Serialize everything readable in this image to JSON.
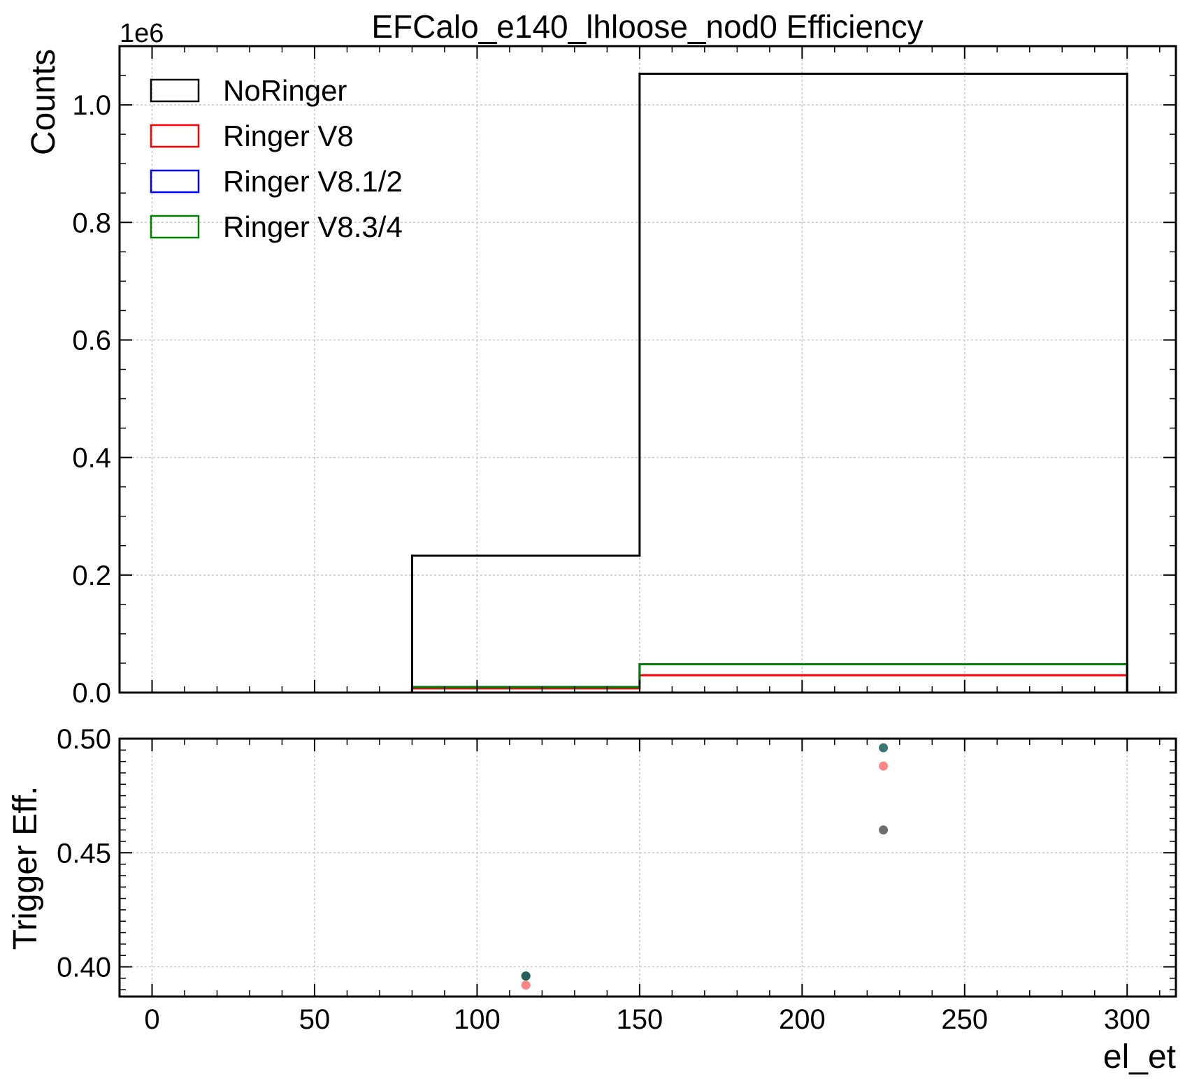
{
  "chart_data": [
    {
      "type": "histogram",
      "title": "EFCalo_e140_lhloose_nod0 Efficiency",
      "ylabel": "Counts",
      "y_multiplier": "1e6",
      "xlim": [
        -10,
        315
      ],
      "ylim": [
        0,
        1.1
      ],
      "grid": true,
      "legend_position": "top-left",
      "bin_edges": [
        80,
        150,
        300
      ],
      "series": [
        {
          "name": "NoRinger",
          "color": "#000000",
          "values": [
            0.233,
            1.053
          ]
        },
        {
          "name": "Ringer V8",
          "color": "#ff0000",
          "values": [
            0.0072,
            0.0295
          ]
        },
        {
          "name": "Ringer V8.1/2",
          "color": "#0000ff",
          "values": [
            0.0093,
            0.0482
          ]
        },
        {
          "name": "Ringer V8.3/4",
          "color": "#008000",
          "values": [
            0.0093,
            0.0482
          ]
        }
      ],
      "x_ticks": [
        0,
        50,
        100,
        150,
        200,
        250,
        300
      ],
      "y_ticks": [
        "0.0",
        "0.2",
        "0.4",
        "0.6",
        "0.8",
        "1.0"
      ]
    },
    {
      "type": "scatter",
      "xlabel": "el_et",
      "ylabel": "Trigger Eff.",
      "xlim": [
        -10,
        315
      ],
      "ylim": [
        0.387,
        0.5
      ],
      "grid": true,
      "series": [
        {
          "color": "#555555",
          "points": [
            [
              115,
              0.396
            ],
            [
              225,
              0.46
            ]
          ]
        },
        {
          "color": "#f87070",
          "points": [
            [
              115,
              0.392
            ],
            [
              225,
              0.488
            ]
          ]
        },
        {
          "color": "#1a5e5a",
          "points": [
            [
              115,
              0.396
            ],
            [
              225,
              0.496
            ]
          ]
        }
      ],
      "x_ticks": [
        "0",
        "50",
        "100",
        "150",
        "200",
        "250",
        "300"
      ],
      "y_ticks": [
        "0.40",
        "0.45",
        "0.50"
      ]
    }
  ]
}
